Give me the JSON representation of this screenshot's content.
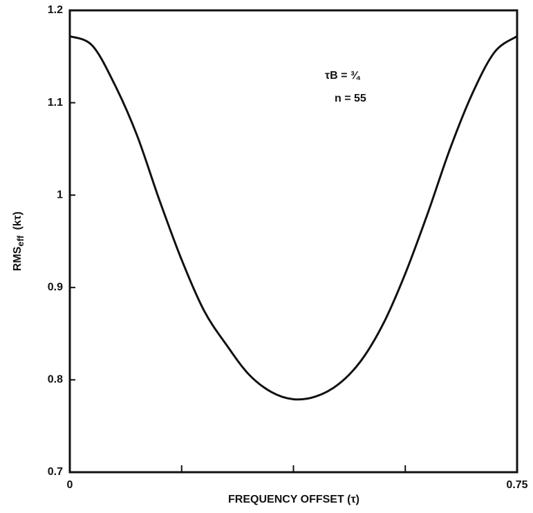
{
  "chart_data": {
    "type": "line",
    "x_label": "FREQUENCY OFFSET (τ)",
    "y_label": "RMS",
    "y_label_sub": "eff",
    "y_label_unit": "(kτ)",
    "annotations": [
      "τB = ¾",
      "n = 55"
    ],
    "x": [
      0,
      0.0375,
      0.075,
      0.1125,
      0.15,
      0.1875,
      0.225,
      0.2625,
      0.3,
      0.3375,
      0.375,
      0.4125,
      0.45,
      0.4875,
      0.525,
      0.5625,
      0.6,
      0.6375,
      0.675,
      0.7125,
      0.75
    ],
    "series": [
      {
        "color": "#111111",
        "values": [
          1.172,
          1.162,
          1.12,
          1.065,
          0.995,
          0.93,
          0.875,
          0.838,
          0.806,
          0.787,
          0.779,
          0.782,
          0.795,
          0.82,
          0.86,
          0.915,
          0.98,
          1.05,
          1.11,
          1.155,
          1.172
        ]
      }
    ],
    "xlim": [
      0,
      0.75
    ],
    "xticks": [
      0,
      0.75
    ],
    "xminor": [
      0.1875,
      0.375,
      0.5625
    ],
    "ylim": [
      0.7,
      1.2
    ],
    "yticks": [
      0.7,
      0.8,
      0.9,
      1,
      1.1,
      1.2
    ]
  }
}
